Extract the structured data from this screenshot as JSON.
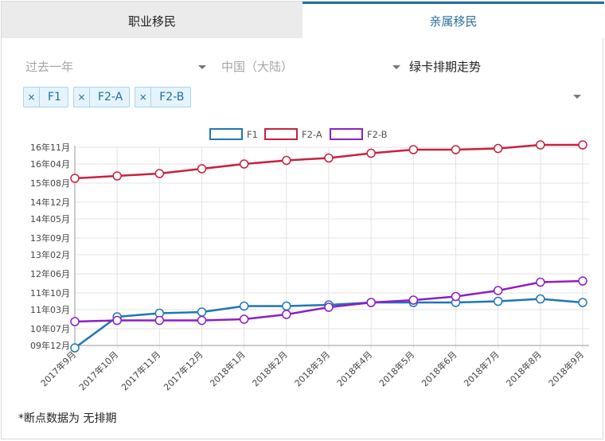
{
  "tabs": [
    {
      "label": "职业移民"
    },
    {
      "label": "亲属移民"
    }
  ],
  "filters": {
    "period": "过去一年",
    "region": "中国（大陆）",
    "title": "绿卡排期走势"
  },
  "tags": [
    {
      "remove": "×",
      "label": "F1"
    },
    {
      "remove": "×",
      "label": "F2-A"
    },
    {
      "remove": "×",
      "label": "F2-B"
    }
  ],
  "colors": {
    "F1": "#1f77b4",
    "F2-A": "#c8213f",
    "F2-B": "#8e1fc4"
  },
  "chart_data": {
    "type": "line",
    "categories": [
      "2017年9月",
      "2017年10月",
      "2017年11月",
      "2017年12月",
      "2018年1月",
      "2018年2月",
      "2018年3月",
      "2018年4月",
      "2018年5月",
      "2018年6月",
      "2018年7月",
      "2018年8月",
      "2018年9月"
    ],
    "y_ticks": [
      "09年12月",
      "10年07月",
      "11年03月",
      "11年10月",
      "12年06月",
      "13年02月",
      "13年09月",
      "14年05月",
      "14年12月",
      "15年08月",
      "16年04月",
      "16年11月"
    ],
    "y_tick_months": [
      0,
      7,
      15,
      22,
      30,
      38,
      45,
      53,
      60,
      68,
      76,
      83
    ],
    "ylim_months": [
      0,
      83
    ],
    "legend_position": "top-center",
    "grid": true,
    "series": [
      {
        "name": "F1",
        "values_months": [
          -1,
          12,
          13.5,
          14,
          16.5,
          16.5,
          17,
          18,
          18,
          18,
          18.5,
          19.5,
          18
        ]
      },
      {
        "name": "F2-A",
        "values_months": [
          70,
          71,
          72,
          74,
          76,
          77.5,
          78.5,
          80.5,
          82,
          82,
          82.5,
          84,
          84
        ]
      },
      {
        "name": "F2-B",
        "values_months": [
          10,
          10.5,
          10.5,
          10.5,
          11,
          13,
          16,
          18,
          19,
          20.5,
          23,
          26.5,
          27
        ]
      }
    ]
  },
  "footnote": "*断点数据为 无排期"
}
